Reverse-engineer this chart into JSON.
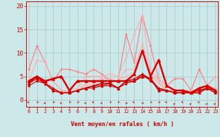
{
  "background_color": "#cce8e8",
  "grid_color": "#aacccc",
  "x_labels": [
    "0",
    "1",
    "2",
    "3",
    "4",
    "5",
    "6",
    "7",
    "8",
    "9",
    "10",
    "11",
    "12",
    "13",
    "14",
    "15",
    "16",
    "17",
    "18",
    "19",
    "20",
    "21",
    "22",
    "23"
  ],
  "xlabel": "Vent moyen/en rafales ( km/h )",
  "ylabel_ticks": [
    0,
    5,
    10,
    15,
    20
  ],
  "ylim": [
    -1.5,
    21
  ],
  "xlim": [
    -0.3,
    23.3
  ],
  "series": [
    {
      "color": "#ff7777",
      "linewidth": 0.8,
      "marker": "+",
      "markersize": 3.5,
      "values": [
        6.5,
        11.5,
        8.0,
        4.0,
        6.5,
        6.5,
        6.0,
        5.5,
        6.5,
        5.5,
        4.0,
        4.0,
        14.0,
        8.0,
        18.0,
        11.5,
        4.5,
        3.0,
        4.5,
        4.5,
        2.0,
        6.5,
        3.0,
        5.0
      ]
    },
    {
      "color": "#ffaaaa",
      "linewidth": 0.8,
      "marker": "+",
      "markersize": 3.5,
      "values": [
        4.0,
        8.5,
        8.0,
        4.0,
        2.0,
        2.0,
        2.5,
        5.0,
        5.0,
        5.0,
        5.5,
        5.0,
        9.0,
        14.0,
        18.0,
        6.0,
        4.5,
        3.0,
        2.0,
        2.0,
        2.0,
        2.0,
        3.0,
        5.0
      ]
    },
    {
      "color": "#ffaaaa",
      "linewidth": 0.8,
      "marker": "+",
      "markersize": 3.5,
      "values": [
        4.0,
        5.0,
        4.0,
        4.0,
        2.0,
        1.5,
        2.0,
        3.5,
        4.0,
        4.5,
        4.5,
        4.0,
        6.5,
        6.5,
        12.0,
        5.5,
        4.0,
        2.0,
        2.0,
        2.0,
        1.5,
        2.0,
        3.0,
        2.5
      ]
    },
    {
      "color": "#ffaaaa",
      "linewidth": 0.8,
      "marker": "+",
      "markersize": 3.5,
      "values": [
        4.0,
        4.5,
        4.0,
        2.5,
        1.5,
        1.5,
        2.0,
        3.0,
        3.5,
        4.0,
        4.0,
        4.0,
        5.0,
        6.0,
        10.5,
        5.0,
        3.5,
        2.0,
        1.5,
        1.5,
        1.5,
        2.0,
        2.5,
        2.0
      ]
    },
    {
      "color": "#dd0000",
      "linewidth": 1.8,
      "marker": "^",
      "markersize": 3,
      "values": [
        4.0,
        5.0,
        4.0,
        4.5,
        5.0,
        2.0,
        4.0,
        4.0,
        4.0,
        4.0,
        4.0,
        4.0,
        4.0,
        5.5,
        10.5,
        5.0,
        8.5,
        3.0,
        2.0,
        2.0,
        1.5,
        2.5,
        3.0,
        2.0
      ]
    },
    {
      "color": "#cc0000",
      "linewidth": 1.2,
      "marker": "^",
      "markersize": 2.5,
      "values": [
        3.5,
        5.0,
        3.5,
        2.0,
        1.5,
        1.5,
        2.0,
        2.5,
        3.0,
        3.5,
        3.5,
        2.5,
        4.0,
        4.0,
        5.0,
        4.5,
        2.0,
        2.0,
        1.5,
        1.5,
        1.5,
        1.5,
        2.5,
        1.5
      ]
    },
    {
      "color": "#cc0000",
      "linewidth": 0.8,
      "marker": "^",
      "markersize": 2.5,
      "values": [
        3.5,
        4.5,
        3.5,
        2.5,
        1.5,
        1.5,
        2.0,
        2.5,
        3.0,
        3.0,
        3.5,
        2.5,
        4.0,
        4.5,
        5.5,
        4.5,
        2.5,
        2.0,
        1.5,
        1.5,
        1.5,
        2.0,
        2.5,
        2.0
      ]
    },
    {
      "color": "#cc0000",
      "linewidth": 0.8,
      "marker": "^",
      "markersize": 2,
      "values": [
        3.0,
        4.0,
        3.5,
        2.0,
        1.5,
        1.5,
        2.0,
        2.5,
        2.5,
        3.0,
        3.0,
        2.5,
        3.5,
        4.0,
        5.5,
        4.0,
        2.5,
        2.0,
        1.5,
        1.5,
        1.5,
        2.0,
        2.5,
        1.5
      ]
    }
  ],
  "arrow_angles": [
    135,
    225,
    270,
    225,
    270,
    225,
    225,
    270,
    135,
    270,
    225,
    225,
    90,
    135,
    90,
    225,
    225,
    135,
    45,
    135,
    45,
    135,
    45,
    45
  ],
  "title_color": "#cc0000",
  "axis_color": "#cc0000",
  "tick_color": "#cc0000",
  "xlabel_fontsize": 6,
  "ytick_fontsize": 6.5,
  "xtick_fontsize": 5
}
